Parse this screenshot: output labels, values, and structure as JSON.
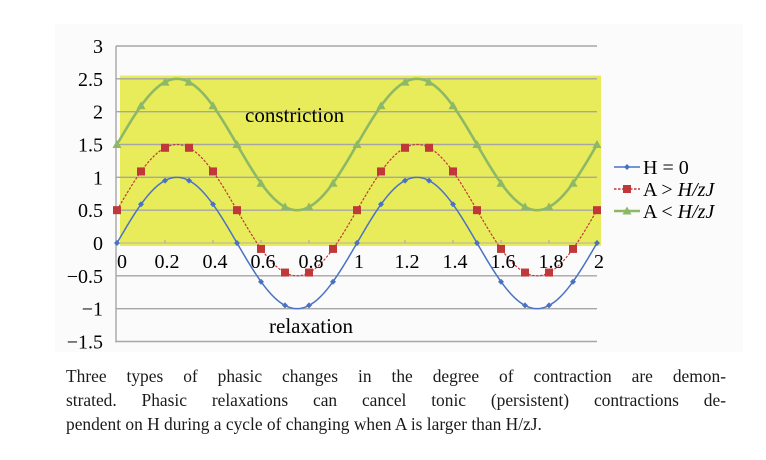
{
  "chart_data": {
    "type": "line",
    "title": "",
    "xlabel": "",
    "ylabel": "",
    "xlim": [
      0,
      2
    ],
    "ylim": [
      -1.5,
      3
    ],
    "x": [
      0,
      0.1,
      0.2,
      0.3,
      0.4,
      0.5,
      0.6,
      0.7,
      0.8,
      0.9,
      1.0,
      1.1,
      1.2,
      1.3,
      1.4,
      1.5,
      1.6,
      1.7,
      1.8,
      1.9,
      2.0
    ],
    "x_tick_labels": [
      "0",
      "0.2",
      "0.4",
      "0.6",
      "0.8",
      "1",
      "1.2",
      "1.4",
      "1.6",
      "1.8",
      "2"
    ],
    "x_ticks": [
      0,
      0.2,
      0.4,
      0.6,
      0.8,
      1.0,
      1.2,
      1.4,
      1.6,
      1.8,
      2.0
    ],
    "y_tick_labels": [
      "3",
      "2.5",
      "2",
      "1.5",
      "1",
      "0.5",
      "0",
      "−0.5",
      "−1",
      "−1.5"
    ],
    "y_ticks": [
      3,
      2.5,
      2,
      1.5,
      1,
      0.5,
      0,
      -0.5,
      -1,
      -1.5
    ],
    "grid": true,
    "legend_position": "right",
    "series": [
      {
        "name": "H = 0",
        "color": "#4a72c4",
        "marker": "diamond",
        "dash": "solid",
        "values": [
          0,
          0.59,
          0.95,
          0.95,
          0.59,
          0,
          -0.59,
          -0.95,
          -0.95,
          -0.59,
          0,
          0.59,
          0.95,
          0.95,
          0.59,
          0,
          -0.59,
          -0.95,
          -0.95,
          -0.59,
          0
        ]
      },
      {
        "name": "A > H/zJ",
        "color": "#c0383a",
        "marker": "square",
        "dash": "dashed",
        "values": [
          0.5,
          1.09,
          1.45,
          1.45,
          1.09,
          0.5,
          -0.09,
          -0.45,
          -0.45,
          -0.09,
          0.5,
          1.09,
          1.45,
          1.45,
          1.09,
          0.5,
          -0.09,
          -0.45,
          -0.45,
          -0.09,
          0.5
        ]
      },
      {
        "name": "A < H/zJ",
        "color": "#8db866",
        "marker": "triangle",
        "dash": "solid",
        "values": [
          1.5,
          2.09,
          2.45,
          2.45,
          2.09,
          1.5,
          0.91,
          0.55,
          0.55,
          0.91,
          1.5,
          2.09,
          2.45,
          2.45,
          2.09,
          1.5,
          0.91,
          0.55,
          0.55,
          0.91,
          1.5
        ]
      }
    ],
    "annotations": [
      {
        "text": "constriction",
        "x": 0.75,
        "y": 1.95
      },
      {
        "text": "relaxation",
        "x": 0.75,
        "y": -1.3
      }
    ],
    "shaded_region": {
      "y_from": 0,
      "y_to": 2.55,
      "color": "#e8ec5a",
      "label": "constriction"
    }
  },
  "legend": {
    "items": [
      {
        "prefix": "H = 0",
        "italic": ""
      },
      {
        "prefix": "A > ",
        "italic": "H/zJ"
      },
      {
        "prefix": "A < ",
        "italic": "H/zJ"
      }
    ]
  },
  "labels": {
    "constriction": "constriction",
    "relaxation": "relaxation"
  },
  "caption": {
    "text": "Three types of phasic changes in the degree of contraction are demonstrated. Phasic relaxations can cancel tonic (persistent) contractions dependent on H during a cycle of changing when A is larger than H/zJ.",
    "line1": "Three types of phasic changes in the degree of contraction are demon-",
    "line2": "strated. Phasic relaxations can cancel tonic (persistent) contractions de-",
    "line3": "pendent on H during a cycle of changing when A is larger than H/zJ."
  }
}
